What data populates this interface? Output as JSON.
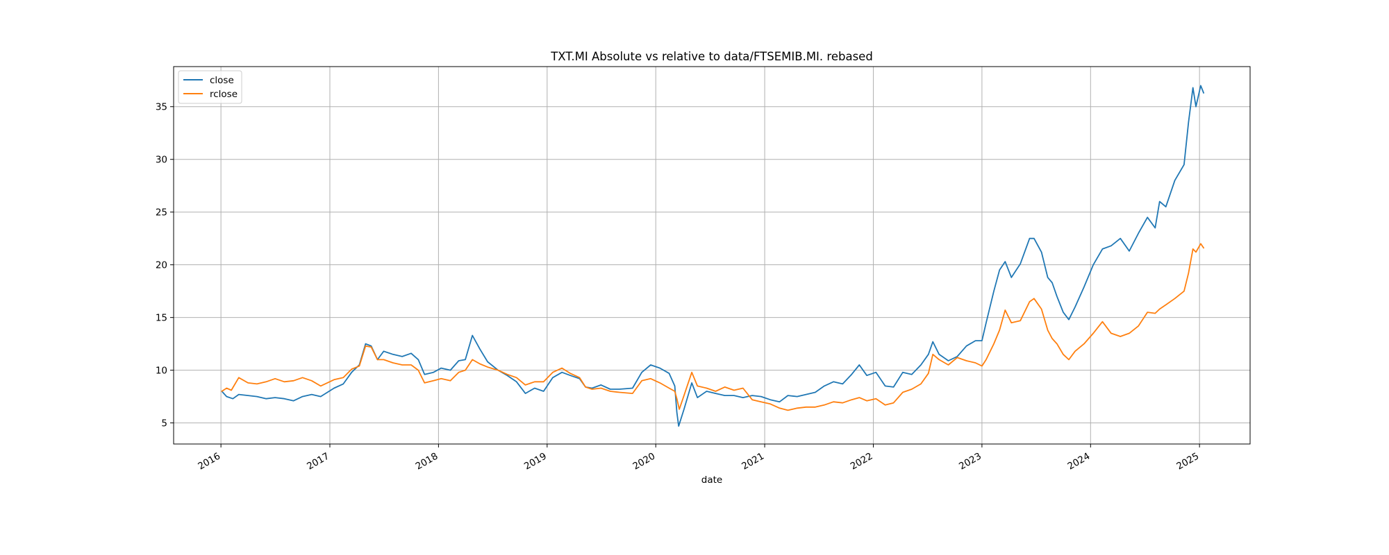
{
  "chart_data": {
    "type": "line",
    "title": "TXT.MI Absolute vs relative to data/FTSEMIB.MI. rebased",
    "xlabel": "date",
    "ylabel": "",
    "x_ticks": [
      "2016",
      "2017",
      "2018",
      "2019",
      "2020",
      "2021",
      "2022",
      "2023",
      "2024",
      "2025"
    ],
    "y_ticks": [
      5,
      10,
      15,
      20,
      25,
      30,
      35
    ],
    "xlim": [
      "2015-07-26",
      "2025-06-20"
    ],
    "ylim": [
      3.0,
      38.8
    ],
    "grid": true,
    "legend_position": "top-left",
    "series": [
      {
        "name": "close",
        "color": "#1f77b4",
        "points": [
          [
            "2016-01-04",
            8.0
          ],
          [
            "2016-01-20",
            7.5
          ],
          [
            "2016-02-10",
            7.3
          ],
          [
            "2016-03-01",
            7.7
          ],
          [
            "2016-04-01",
            7.6
          ],
          [
            "2016-05-01",
            7.5
          ],
          [
            "2016-06-01",
            7.3
          ],
          [
            "2016-07-01",
            7.4
          ],
          [
            "2016-08-01",
            7.3
          ],
          [
            "2016-09-01",
            7.1
          ],
          [
            "2016-10-01",
            7.5
          ],
          [
            "2016-11-01",
            7.7
          ],
          [
            "2016-12-01",
            7.5
          ],
          [
            "2017-01-15",
            8.3
          ],
          [
            "2017-02-15",
            8.7
          ],
          [
            "2017-03-15",
            9.8
          ],
          [
            "2017-04-10",
            10.5
          ],
          [
            "2017-05-01",
            12.5
          ],
          [
            "2017-05-20",
            12.3
          ],
          [
            "2017-06-10",
            11.0
          ],
          [
            "2017-07-01",
            11.8
          ],
          [
            "2017-08-01",
            11.5
          ],
          [
            "2017-09-01",
            11.3
          ],
          [
            "2017-10-01",
            11.6
          ],
          [
            "2017-10-25",
            11.0
          ],
          [
            "2017-11-15",
            9.6
          ],
          [
            "2017-12-15",
            9.8
          ],
          [
            "2018-01-10",
            10.2
          ],
          [
            "2018-02-10",
            10.0
          ],
          [
            "2018-03-10",
            10.9
          ],
          [
            "2018-04-01",
            11.0
          ],
          [
            "2018-04-25",
            13.3
          ],
          [
            "2018-05-20",
            12.0
          ],
          [
            "2018-06-15",
            10.8
          ],
          [
            "2018-07-20",
            10.0
          ],
          [
            "2018-08-20",
            9.5
          ],
          [
            "2018-09-20",
            8.9
          ],
          [
            "2018-10-20",
            7.8
          ],
          [
            "2018-11-20",
            8.3
          ],
          [
            "2018-12-20",
            8.0
          ],
          [
            "2019-01-20",
            9.3
          ],
          [
            "2019-02-20",
            9.8
          ],
          [
            "2019-03-20",
            9.5
          ],
          [
            "2019-04-20",
            9.2
          ],
          [
            "2019-05-10",
            8.4
          ],
          [
            "2019-06-01",
            8.3
          ],
          [
            "2019-07-01",
            8.6
          ],
          [
            "2019-08-01",
            8.2
          ],
          [
            "2019-09-01",
            8.2
          ],
          [
            "2019-10-15",
            8.3
          ],
          [
            "2019-11-15",
            9.8
          ],
          [
            "2019-12-15",
            10.5
          ],
          [
            "2020-01-15",
            10.2
          ],
          [
            "2020-02-15",
            9.7
          ],
          [
            "2020-03-05",
            8.5
          ],
          [
            "2020-03-12",
            6.0
          ],
          [
            "2020-03-18",
            4.7
          ],
          [
            "2020-04-05",
            6.3
          ],
          [
            "2020-05-01",
            8.8
          ],
          [
            "2020-05-20",
            7.4
          ],
          [
            "2020-06-20",
            8.0
          ],
          [
            "2020-07-20",
            7.8
          ],
          [
            "2020-08-20",
            7.6
          ],
          [
            "2020-09-20",
            7.6
          ],
          [
            "2020-10-20",
            7.4
          ],
          [
            "2020-11-20",
            7.6
          ],
          [
            "2020-12-20",
            7.5
          ],
          [
            "2021-01-20",
            7.2
          ],
          [
            "2021-02-20",
            7.0
          ],
          [
            "2021-03-20",
            7.6
          ],
          [
            "2021-04-20",
            7.5
          ],
          [
            "2021-05-20",
            7.7
          ],
          [
            "2021-06-20",
            7.9
          ],
          [
            "2021-07-20",
            8.5
          ],
          [
            "2021-08-20",
            8.9
          ],
          [
            "2021-09-20",
            8.7
          ],
          [
            "2021-10-20",
            9.6
          ],
          [
            "2021-11-15",
            10.5
          ],
          [
            "2021-12-10",
            9.5
          ],
          [
            "2022-01-10",
            9.8
          ],
          [
            "2022-02-10",
            8.5
          ],
          [
            "2022-03-10",
            8.4
          ],
          [
            "2022-04-10",
            9.8
          ],
          [
            "2022-05-10",
            9.6
          ],
          [
            "2022-06-10",
            10.5
          ],
          [
            "2022-07-05",
            11.5
          ],
          [
            "2022-07-20",
            12.7
          ],
          [
            "2022-08-10",
            11.5
          ],
          [
            "2022-09-10",
            10.9
          ],
          [
            "2022-10-10",
            11.3
          ],
          [
            "2022-11-10",
            12.3
          ],
          [
            "2022-12-10",
            12.8
          ],
          [
            "2023-01-01",
            12.8
          ],
          [
            "2023-01-15",
            14.5
          ],
          [
            "2023-02-10",
            17.5
          ],
          [
            "2023-03-01",
            19.5
          ],
          [
            "2023-03-20",
            20.3
          ],
          [
            "2023-04-10",
            18.8
          ],
          [
            "2023-05-10",
            20.1
          ],
          [
            "2023-06-10",
            22.5
          ],
          [
            "2023-06-25",
            22.5
          ],
          [
            "2023-07-20",
            21.2
          ],
          [
            "2023-08-10",
            18.8
          ],
          [
            "2023-08-25",
            18.3
          ],
          [
            "2023-09-10",
            17.0
          ],
          [
            "2023-10-01",
            15.5
          ],
          [
            "2023-10-20",
            14.8
          ],
          [
            "2023-11-10",
            16.0
          ],
          [
            "2023-12-10",
            17.9
          ],
          [
            "2024-01-10",
            20.0
          ],
          [
            "2024-02-10",
            21.5
          ],
          [
            "2024-03-10",
            21.8
          ],
          [
            "2024-04-10",
            22.5
          ],
          [
            "2024-05-10",
            21.3
          ],
          [
            "2024-06-10",
            23.0
          ],
          [
            "2024-07-10",
            24.5
          ],
          [
            "2024-08-05",
            23.5
          ],
          [
            "2024-08-20",
            26.0
          ],
          [
            "2024-09-10",
            25.5
          ],
          [
            "2024-10-10",
            28.0
          ],
          [
            "2024-11-10",
            29.5
          ],
          [
            "2024-11-25",
            33.5
          ],
          [
            "2024-12-10",
            36.8
          ],
          [
            "2024-12-20",
            35.0
          ],
          [
            "2025-01-05",
            37.0
          ],
          [
            "2025-01-15",
            36.3
          ]
        ]
      },
      {
        "name": "rclose",
        "color": "#ff7f0e",
        "points": [
          [
            "2016-01-04",
            8.0
          ],
          [
            "2016-01-20",
            8.3
          ],
          [
            "2016-02-05",
            8.1
          ],
          [
            "2016-03-01",
            9.3
          ],
          [
            "2016-04-01",
            8.8
          ],
          [
            "2016-05-01",
            8.7
          ],
          [
            "2016-06-01",
            8.9
          ],
          [
            "2016-07-01",
            9.2
          ],
          [
            "2016-08-01",
            8.9
          ],
          [
            "2016-09-01",
            9.0
          ],
          [
            "2016-10-01",
            9.3
          ],
          [
            "2016-11-01",
            9.0
          ],
          [
            "2016-12-01",
            8.5
          ],
          [
            "2017-01-15",
            9.1
          ],
          [
            "2017-02-15",
            9.3
          ],
          [
            "2017-03-15",
            10.1
          ],
          [
            "2017-04-10",
            10.4
          ],
          [
            "2017-05-01",
            12.3
          ],
          [
            "2017-05-20",
            12.2
          ],
          [
            "2017-06-10",
            11.0
          ],
          [
            "2017-07-01",
            11.0
          ],
          [
            "2017-08-01",
            10.7
          ],
          [
            "2017-09-01",
            10.5
          ],
          [
            "2017-10-01",
            10.5
          ],
          [
            "2017-10-25",
            10.0
          ],
          [
            "2017-11-15",
            8.8
          ],
          [
            "2017-12-15",
            9.0
          ],
          [
            "2018-01-10",
            9.2
          ],
          [
            "2018-02-10",
            9.0
          ],
          [
            "2018-03-10",
            9.8
          ],
          [
            "2018-04-01",
            10.0
          ],
          [
            "2018-04-25",
            11.0
          ],
          [
            "2018-05-20",
            10.6
          ],
          [
            "2018-06-15",
            10.3
          ],
          [
            "2018-07-20",
            10.0
          ],
          [
            "2018-08-20",
            9.6
          ],
          [
            "2018-09-20",
            9.3
          ],
          [
            "2018-10-20",
            8.6
          ],
          [
            "2018-11-20",
            8.9
          ],
          [
            "2018-12-20",
            8.9
          ],
          [
            "2019-01-20",
            9.8
          ],
          [
            "2019-02-20",
            10.2
          ],
          [
            "2019-03-20",
            9.7
          ],
          [
            "2019-04-20",
            9.3
          ],
          [
            "2019-05-10",
            8.4
          ],
          [
            "2019-06-01",
            8.2
          ],
          [
            "2019-07-01",
            8.3
          ],
          [
            "2019-08-01",
            8.0
          ],
          [
            "2019-09-01",
            7.9
          ],
          [
            "2019-10-15",
            7.8
          ],
          [
            "2019-11-15",
            9.0
          ],
          [
            "2019-12-15",
            9.2
          ],
          [
            "2020-01-15",
            8.8
          ],
          [
            "2020-02-15",
            8.3
          ],
          [
            "2020-03-05",
            8.0
          ],
          [
            "2020-03-12",
            7.3
          ],
          [
            "2020-03-20",
            6.3
          ],
          [
            "2020-04-05",
            7.6
          ],
          [
            "2020-05-01",
            9.8
          ],
          [
            "2020-05-20",
            8.5
          ],
          [
            "2020-06-20",
            8.3
          ],
          [
            "2020-07-20",
            8.0
          ],
          [
            "2020-08-20",
            8.4
          ],
          [
            "2020-09-20",
            8.1
          ],
          [
            "2020-10-20",
            8.3
          ],
          [
            "2020-11-20",
            7.2
          ],
          [
            "2020-12-20",
            7.0
          ],
          [
            "2021-01-20",
            6.8
          ],
          [
            "2021-02-20",
            6.4
          ],
          [
            "2021-03-20",
            6.2
          ],
          [
            "2021-04-20",
            6.4
          ],
          [
            "2021-05-20",
            6.5
          ],
          [
            "2021-06-20",
            6.5
          ],
          [
            "2021-07-20",
            6.7
          ],
          [
            "2021-08-20",
            7.0
          ],
          [
            "2021-09-20",
            6.9
          ],
          [
            "2021-10-20",
            7.2
          ],
          [
            "2021-11-15",
            7.4
          ],
          [
            "2021-12-10",
            7.1
          ],
          [
            "2022-01-10",
            7.3
          ],
          [
            "2022-02-10",
            6.7
          ],
          [
            "2022-03-10",
            6.9
          ],
          [
            "2022-04-10",
            7.9
          ],
          [
            "2022-05-10",
            8.2
          ],
          [
            "2022-06-10",
            8.7
          ],
          [
            "2022-07-05",
            9.7
          ],
          [
            "2022-07-20",
            11.5
          ],
          [
            "2022-08-10",
            11.0
          ],
          [
            "2022-09-10",
            10.5
          ],
          [
            "2022-10-10",
            11.2
          ],
          [
            "2022-11-10",
            10.9
          ],
          [
            "2022-12-10",
            10.7
          ],
          [
            "2023-01-01",
            10.4
          ],
          [
            "2023-01-15",
            11.0
          ],
          [
            "2023-02-10",
            12.5
          ],
          [
            "2023-03-01",
            13.8
          ],
          [
            "2023-03-20",
            15.7
          ],
          [
            "2023-04-10",
            14.5
          ],
          [
            "2023-05-10",
            14.7
          ],
          [
            "2023-06-10",
            16.5
          ],
          [
            "2023-06-25",
            16.8
          ],
          [
            "2023-07-20",
            15.8
          ],
          [
            "2023-08-10",
            13.8
          ],
          [
            "2023-08-25",
            13.0
          ],
          [
            "2023-09-10",
            12.5
          ],
          [
            "2023-10-01",
            11.5
          ],
          [
            "2023-10-20",
            11.0
          ],
          [
            "2023-11-10",
            11.8
          ],
          [
            "2023-12-10",
            12.5
          ],
          [
            "2024-01-10",
            13.5
          ],
          [
            "2024-02-10",
            14.6
          ],
          [
            "2024-03-10",
            13.5
          ],
          [
            "2024-04-10",
            13.2
          ],
          [
            "2024-05-10",
            13.5
          ],
          [
            "2024-06-10",
            14.2
          ],
          [
            "2024-07-10",
            15.5
          ],
          [
            "2024-08-05",
            15.4
          ],
          [
            "2024-08-20",
            15.8
          ],
          [
            "2024-09-10",
            16.2
          ],
          [
            "2024-10-10",
            16.8
          ],
          [
            "2024-11-10",
            17.5
          ],
          [
            "2024-11-25",
            19.2
          ],
          [
            "2024-12-10",
            21.5
          ],
          [
            "2024-12-20",
            21.2
          ],
          [
            "2025-01-05",
            22.0
          ],
          [
            "2025-01-15",
            21.6
          ]
        ]
      }
    ]
  }
}
